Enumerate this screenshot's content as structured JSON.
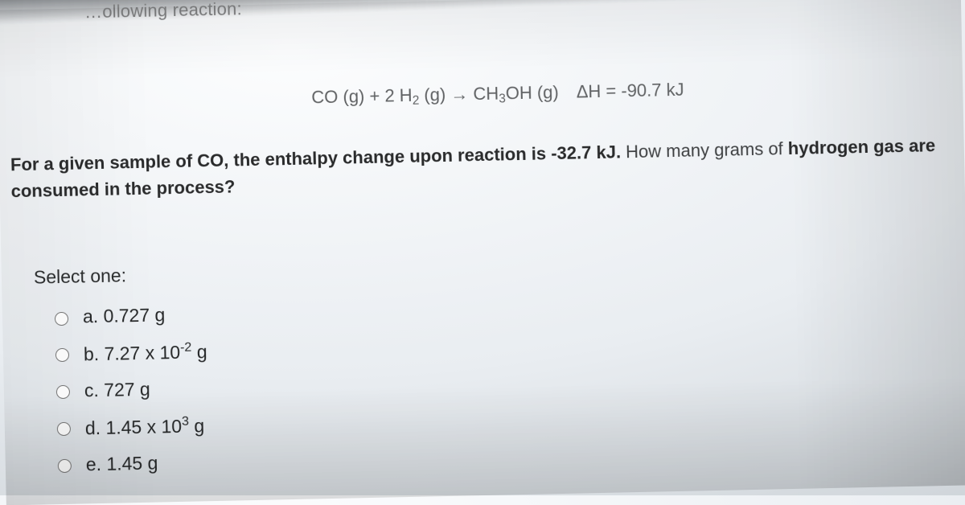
{
  "fragment_top": "…ollowing reaction:",
  "equation": {
    "lhs_co": "CO (g)",
    "plus": "  +  ",
    "lhs_h2_pre": "2 H",
    "lhs_h2_sub": "2",
    "lhs_h2_post": " (g)",
    "arrow": "  →  ",
    "rhs_pre": "CH",
    "rhs_sub": "3",
    "rhs_post": "OH (g)",
    "delta_h": "ΔH = -90.7 kJ"
  },
  "question": {
    "line1_bold_a": "For a given sample of CO, the enthalpy change upon reaction is -32.7 kJ.",
    "line1_plain": "  How many grams of ",
    "line1_bold_b": "hydrogen gas are",
    "line2_bold": "consumed in the process?"
  },
  "select_label": "Select one:",
  "options": {
    "a": "a. 0.727 g",
    "b_pre": "b. 7.27 x 10",
    "b_exp": "-2",
    "b_post": " g",
    "c": "c. 727 g",
    "d_pre": "d. 1.45 x 10",
    "d_exp": "3",
    "d_post": " g",
    "e": "e. 1.45 g"
  }
}
